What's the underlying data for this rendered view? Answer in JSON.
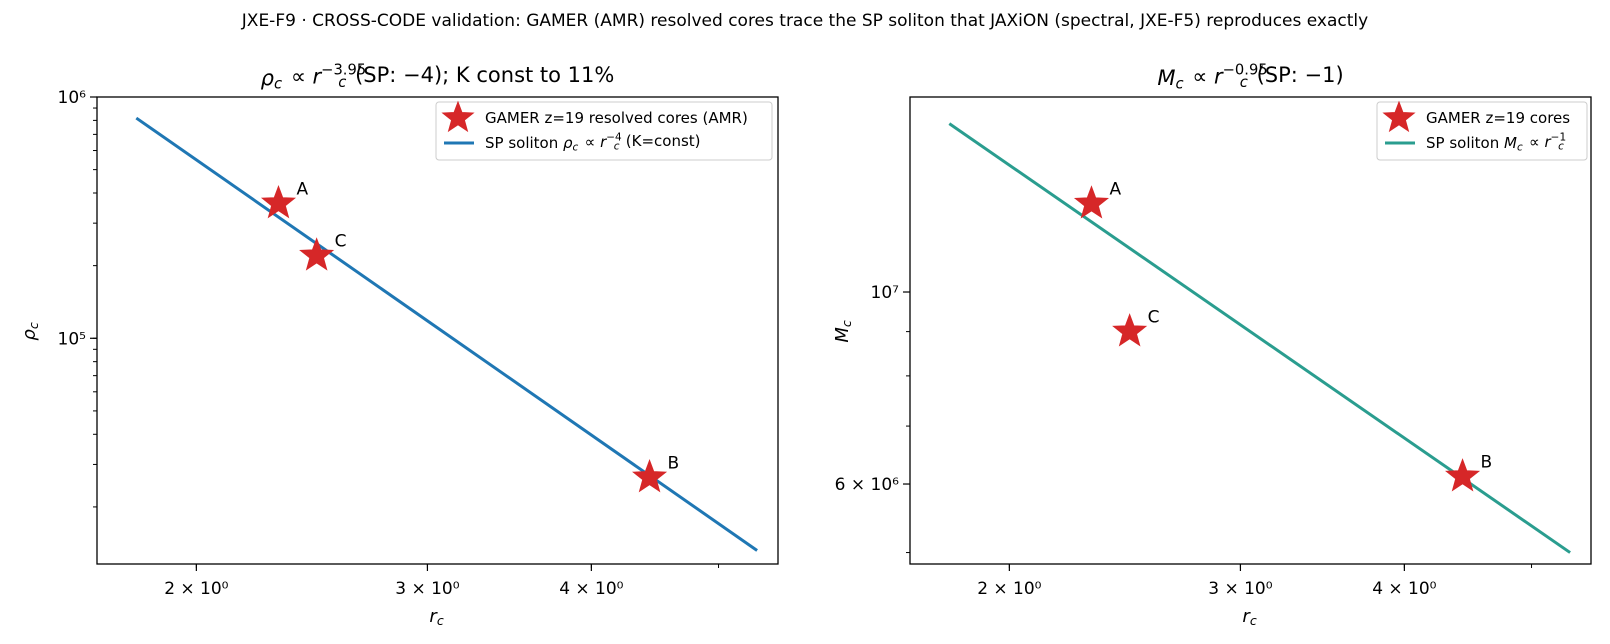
{
  "figure": {
    "suptitle": "JXE-F9 · CROSS-CODE validation: GAMER (AMR) resolved cores trace the SP soliton that JAXiON (spectral, JXE-F5) reproduces exactly"
  },
  "colors": {
    "points": "#d62728",
    "density_line": "#1f77b4",
    "mass_line": "#2a9d8f"
  },
  "chart_data": [
    {
      "type": "scatter",
      "title": "ρc ∝ rc^−3.95 (SP: −4); K const to 11%",
      "xlabel": "rc",
      "ylabel": "ρc",
      "xscale": "log",
      "yscale": "log",
      "xlim": [
        1.68,
        5.55
      ],
      "ylim": [
        11600,
        1000000
      ],
      "xticks": [
        {
          "value": 2,
          "label": "2 × 10⁰"
        },
        {
          "value": 3,
          "label": "3 × 10⁰"
        },
        {
          "value": 4,
          "label": "4 × 10⁰"
        }
      ],
      "yticks": [
        {
          "value": 100000,
          "label": "10⁵"
        },
        {
          "value": 1000000,
          "label": "10⁶"
        }
      ],
      "grid": false,
      "legend_position": "top-right",
      "series": [
        {
          "name": "GAMER z=19 resolved cores (AMR)",
          "kind": "star-markers",
          "points": [
            {
              "label": "A",
              "x": 2.31,
              "y": 362000
            },
            {
              "label": "C",
              "x": 2.47,
              "y": 220000
            },
            {
              "label": "B",
              "x": 4.43,
              "y": 26500
            }
          ]
        },
        {
          "name": "SP soliton ρc ∝ rc^−4 (K=const)",
          "kind": "line",
          "points": [
            {
              "x": 1.8,
              "y": 818000
            },
            {
              "x": 5.35,
              "y": 13200
            }
          ]
        }
      ]
    },
    {
      "type": "scatter",
      "title": "Mc ∝ rc^−0.95 (SP: −1)",
      "xlabel": "rc",
      "ylabel": "Mc",
      "xscale": "log",
      "yscale": "log",
      "xlim": [
        1.68,
        5.55
      ],
      "ylim": [
        4850000,
        16800000
      ],
      "xticks": [
        {
          "value": 2,
          "label": "2 × 10⁰"
        },
        {
          "value": 3,
          "label": "3 × 10⁰"
        },
        {
          "value": 4,
          "label": "4 × 10⁰"
        }
      ],
      "yticks": [
        {
          "value": 6000000,
          "label": "6 × 10⁶"
        },
        {
          "value": 10000000,
          "label": "10⁷"
        }
      ],
      "grid": false,
      "legend_position": "top-right",
      "series": [
        {
          "name": "GAMER z=19 cores",
          "kind": "star-markers",
          "points": [
            {
              "label": "A",
              "x": 2.31,
              "y": 12650000
            },
            {
              "label": "C",
              "x": 2.47,
              "y": 9000000
            },
            {
              "label": "B",
              "x": 4.43,
              "y": 6120000
            }
          ]
        },
        {
          "name": "SP soliton Mc ∝ rc^−1",
          "kind": "line",
          "points": [
            {
              "x": 1.8,
              "y": 15650000
            },
            {
              "x": 5.35,
              "y": 5000000
            }
          ]
        }
      ]
    }
  ]
}
